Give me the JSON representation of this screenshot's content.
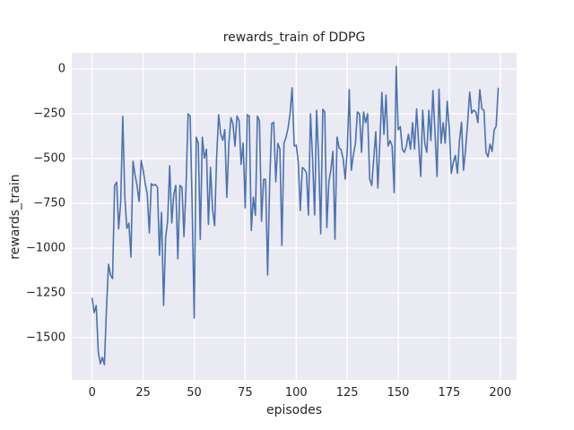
{
  "colors": {
    "figure_bg": "#ffffff",
    "axes_bg": "#eaeaf2",
    "grid": "#ffffff",
    "line": "#4c72b0",
    "text": "#262626"
  },
  "chart_data": {
    "type": "line",
    "title": "rewards_train of DDPG",
    "xlabel": "episodes",
    "ylabel": "rewards_train",
    "xlim": [
      -10,
      208
    ],
    "ylim": [
      -1735,
      90
    ],
    "grid": true,
    "legend": "none",
    "xtick_values": [
      0,
      25,
      50,
      75,
      100,
      125,
      150,
      175,
      200
    ],
    "xtick_labels": [
      "0",
      "25",
      "50",
      "75",
      "100",
      "125",
      "150",
      "175",
      "200"
    ],
    "ytick_values": [
      0,
      -250,
      -500,
      -750,
      -1000,
      -1250,
      -1500
    ],
    "ytick_labels": [
      "0",
      "−250",
      "−500",
      "−750",
      "−1000",
      "−1250",
      "−1500"
    ],
    "series": [
      {
        "name": "rewards_train",
        "color": "#4c72b0",
        "x_start": 0,
        "x_step": 1,
        "values": [
          -1280,
          -1360,
          -1320,
          -1580,
          -1645,
          -1610,
          -1650,
          -1340,
          -1090,
          -1150,
          -1170,
          -650,
          -632,
          -892,
          -740,
          -265,
          -716,
          -890,
          -860,
          -1050,
          -515,
          -590,
          -650,
          -740,
          -510,
          -565,
          -640,
          -700,
          -915,
          -640,
          -650,
          -645,
          -660,
          -1040,
          -800,
          -1320,
          -940,
          -850,
          -540,
          -860,
          -700,
          -650,
          -1060,
          -650,
          -660,
          -935,
          -665,
          -250,
          -265,
          -750,
          -1390,
          -381,
          -415,
          -951,
          -381,
          -498,
          -448,
          -867,
          -549,
          -783,
          -875,
          -498,
          -255,
          -364,
          -398,
          -339,
          -716,
          -414,
          -272,
          -305,
          -431,
          -263,
          -289,
          -532,
          -414,
          -775,
          -255,
          -263,
          -901,
          -716,
          -817,
          -263,
          -289,
          -850,
          -616,
          -616,
          -1150,
          -632,
          -305,
          -297,
          -630,
          -415,
          -448,
          -985,
          -415,
          -381,
          -330,
          -250,
          -105,
          -430,
          -425,
          -520,
          -790,
          -550,
          -560,
          -580,
          -815,
          -250,
          -500,
          -815,
          -230,
          -500,
          -920,
          -225,
          -240,
          -885,
          -630,
          -560,
          -460,
          -950,
          -380,
          -440,
          -450,
          -500,
          -615,
          -450,
          -115,
          -565,
          -480,
          -415,
          -240,
          -250,
          -465,
          -240,
          -300,
          -250,
          -615,
          -650,
          -500,
          -350,
          -665,
          -400,
          -130,
          -365,
          -145,
          -430,
          -400,
          -430,
          -690,
          15,
          -340,
          -322,
          -448,
          -465,
          -430,
          -364,
          -448,
          -300,
          -448,
          -222,
          -415,
          -600,
          -230,
          -415,
          -465,
          -230,
          -400,
          -121,
          -355,
          -600,
          -113,
          -415,
          -300,
          -415,
          -180,
          -330,
          -582,
          -520,
          -482,
          -582,
          -400,
          -297,
          -565,
          -450,
          -300,
          -129,
          -247,
          -230,
          -240,
          -300,
          -115,
          -223,
          -230,
          -465,
          -490,
          -420,
          -460,
          -340,
          -320,
          -108
        ]
      }
    ]
  }
}
